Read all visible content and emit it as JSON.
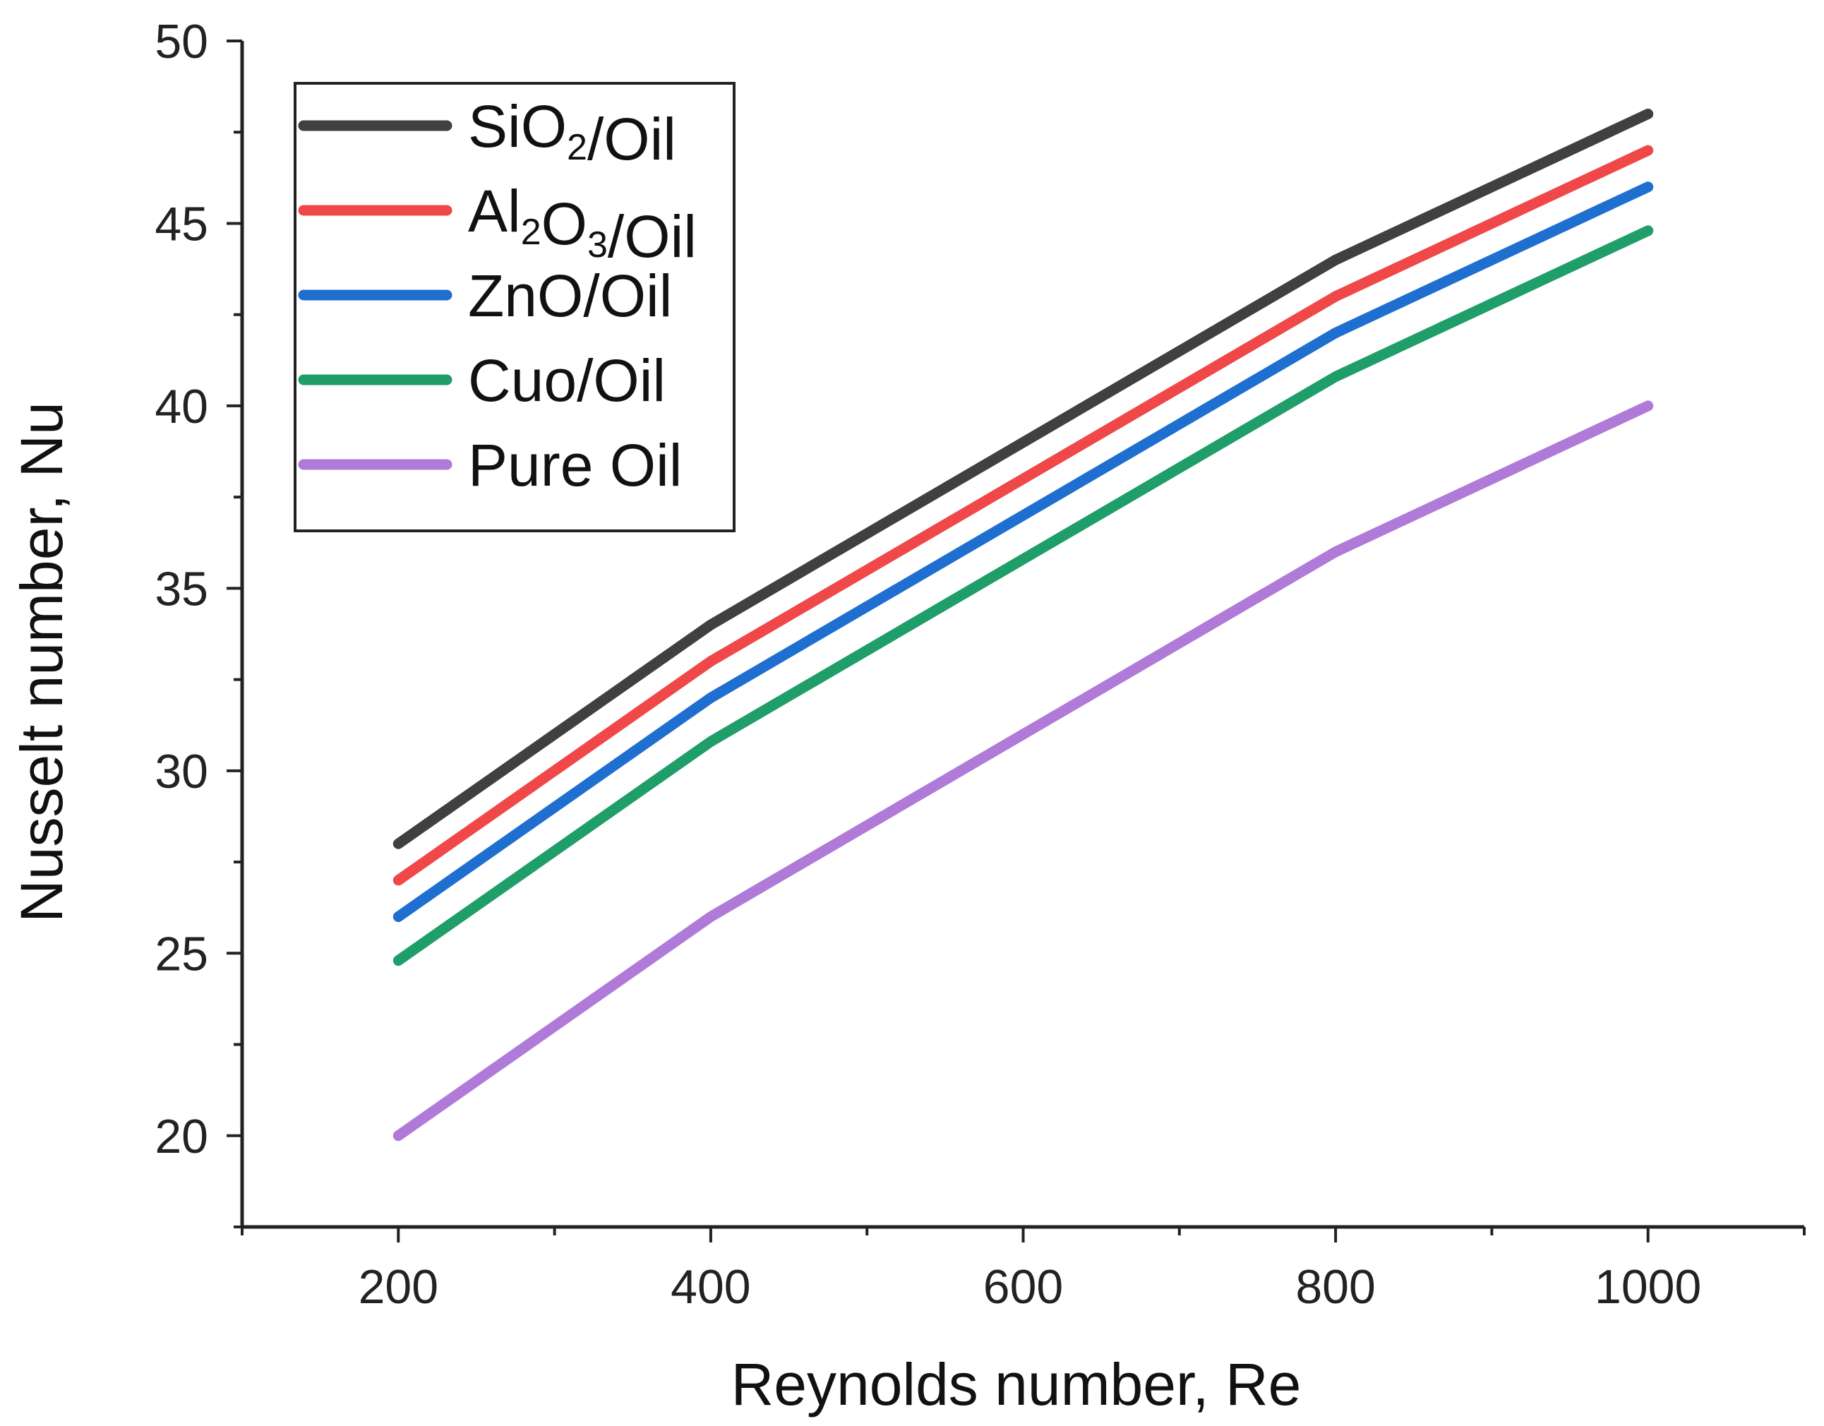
{
  "chart_data": {
    "type": "line",
    "title": "",
    "xlabel": "Reynolds number, Re",
    "ylabel": "Nusselt number, Nu",
    "xlim": [
      100,
      1100
    ],
    "ylim": [
      17.5,
      50
    ],
    "x": [
      200,
      400,
      600,
      800,
      1000
    ],
    "xticks": [
      200,
      400,
      600,
      800,
      1000
    ],
    "yticks": [
      20,
      25,
      30,
      35,
      40,
      45,
      50
    ],
    "grid": false,
    "legend_position": "top-left",
    "series": [
      {
        "name": "SiO2/Oil",
        "label_parts": [
          [
            "SiO",
            ""
          ],
          [
            "2",
            "sub"
          ],
          [
            "/Oil",
            ""
          ]
        ],
        "color": "#404040",
        "values": [
          28,
          34,
          39,
          44,
          48
        ]
      },
      {
        "name": "Al2O3/Oil",
        "label_parts": [
          [
            "Al",
            ""
          ],
          [
            "2",
            "sub"
          ],
          [
            "O",
            ""
          ],
          [
            "3",
            "sub"
          ],
          [
            "/Oil",
            ""
          ]
        ],
        "color": "#f04848",
        "values": [
          27,
          33,
          38,
          43,
          47
        ]
      },
      {
        "name": "ZnO/Oil",
        "label_parts": [
          [
            "ZnO/Oil",
            ""
          ]
        ],
        "color": "#1f6fd0",
        "values": [
          26,
          32,
          37,
          42,
          46
        ]
      },
      {
        "name": "Cuo/Oil",
        "label_parts": [
          [
            "Cuo/Oil",
            ""
          ]
        ],
        "color": "#1f9e6a",
        "values": [
          24.8,
          30.8,
          35.8,
          40.8,
          44.8
        ]
      },
      {
        "name": "Pure Oil",
        "label_parts": [
          [
            "Pure Oil",
            ""
          ]
        ],
        "color": "#b07ad8",
        "values": [
          20,
          26,
          31,
          36,
          40
        ]
      }
    ]
  }
}
